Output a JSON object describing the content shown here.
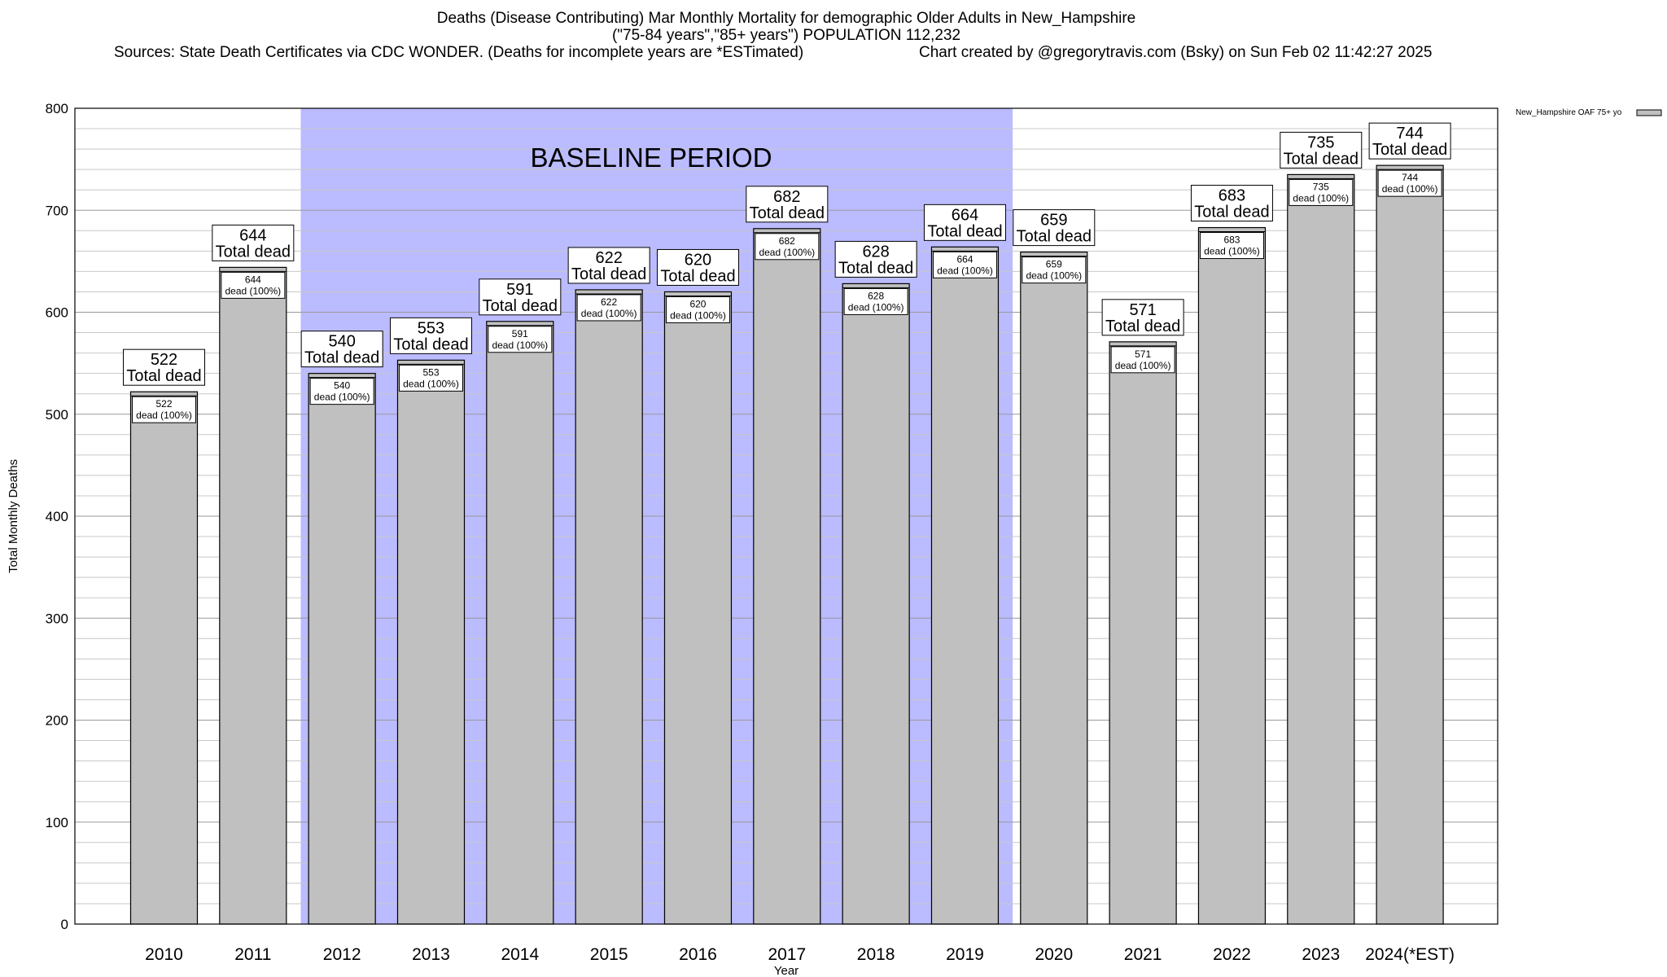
{
  "header": {
    "title_line1": "Deaths (Disease Contributing) Mar Monthly Mortality for demographic Older Adults in New_Hampshire",
    "title_line2": "(\"75-84 years\",\"85+ years\") POPULATION 112,232",
    "sources": "Sources: State Death Certificates via CDC WONDER. (Deaths for incomplete years are *ESTimated)",
    "credit": "Chart created by @gregorytravis.com (Bsky) on Sun Feb 02 11:42:27 2025"
  },
  "chart_data": {
    "type": "bar",
    "xlabel": "Year",
    "ylabel": "Total Monthly Deaths",
    "ylim": [
      0,
      800
    ],
    "y_ticks": [
      0,
      100,
      200,
      300,
      400,
      500,
      600,
      700,
      800
    ],
    "y_minor_step": 20,
    "grid": true,
    "categories": [
      "2010",
      "2011",
      "2012",
      "2013",
      "2014",
      "2015",
      "2016",
      "2017",
      "2018",
      "2019",
      "2020",
      "2021",
      "2022",
      "2023",
      "2024(*EST)"
    ],
    "series": [
      {
        "name": "New_Hampshire OAF 75+ yo",
        "color": "#c0c0c0",
        "values": [
          522,
          644,
          540,
          553,
          591,
          622,
          620,
          682,
          628,
          664,
          659,
          571,
          683,
          735,
          744
        ]
      }
    ],
    "top_label_suffix": "Total dead",
    "inner_label_suffix": "dead (100%)",
    "legend": {
      "placement": "top-right",
      "entries": [
        "New_Hampshire OAF 75+ yo"
      ]
    },
    "baseline": {
      "label": "BASELINE PERIOD",
      "from": "2012",
      "to": "2019",
      "color": "#bbbbff"
    }
  }
}
